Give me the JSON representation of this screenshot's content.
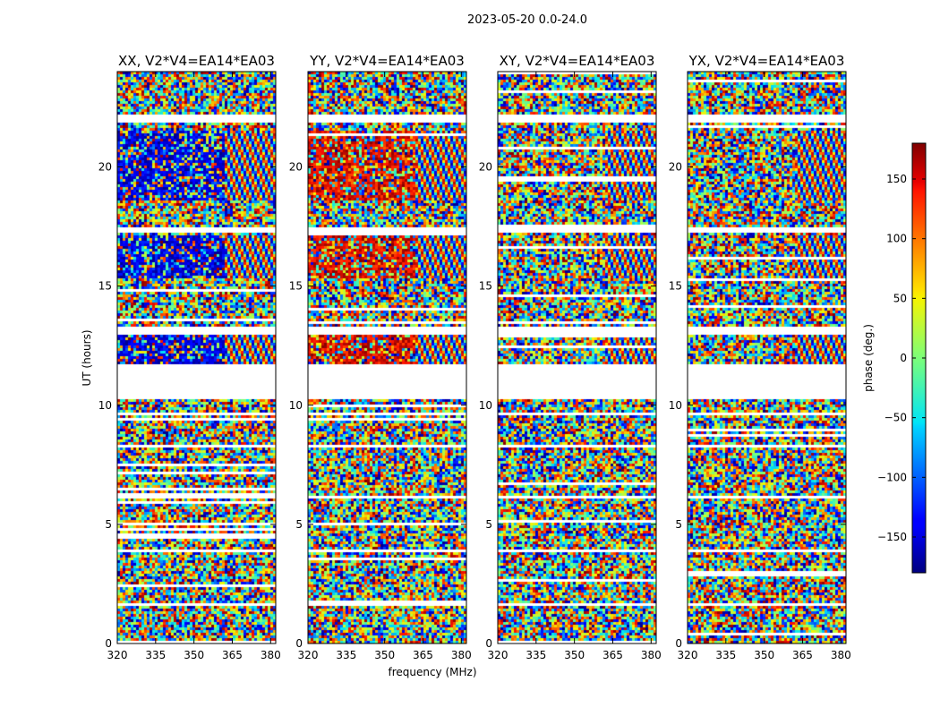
{
  "chart_data": {
    "type": "heatmap",
    "title": "2023-05-20 0.0-24.0",
    "xlabel": "frequency (MHz)",
    "ylabel": "UT (hours)",
    "xlim": [
      320,
      382
    ],
    "ylim": [
      0,
      24
    ],
    "xticks": [
      320,
      335,
      350,
      365,
      380
    ],
    "yticks": [
      0,
      5,
      10,
      15,
      20
    ],
    "panels": [
      {
        "title": "XX, V2*V4=EA14*EA03",
        "bias_phase": -150
      },
      {
        "title": "YY, V2*V4=EA14*EA03",
        "bias_phase": 150
      },
      {
        "title": "XY, V2*V4=EA14*EA03",
        "bias_phase": null
      },
      {
        "title": "YX, V2*V4=EA14*EA03",
        "bias_phase": null
      }
    ],
    "colorbar": {
      "label": "phase (deg.)",
      "range": [
        -180,
        180
      ],
      "ticks": [
        -150,
        -100,
        -50,
        0,
        50,
        100,
        150
      ],
      "colormap": "jet"
    },
    "blank_ut_ranges": [
      [
        10.3,
        11.8
      ],
      [
        13.0,
        13.3
      ],
      [
        17.3,
        17.5
      ],
      [
        21.9,
        22.2
      ],
      [
        9.6,
        9.7
      ],
      [
        8.3,
        8.4
      ],
      [
        6.1,
        6.3
      ],
      [
        3.9,
        4.0
      ],
      [
        1.6,
        1.7
      ]
    ]
  }
}
